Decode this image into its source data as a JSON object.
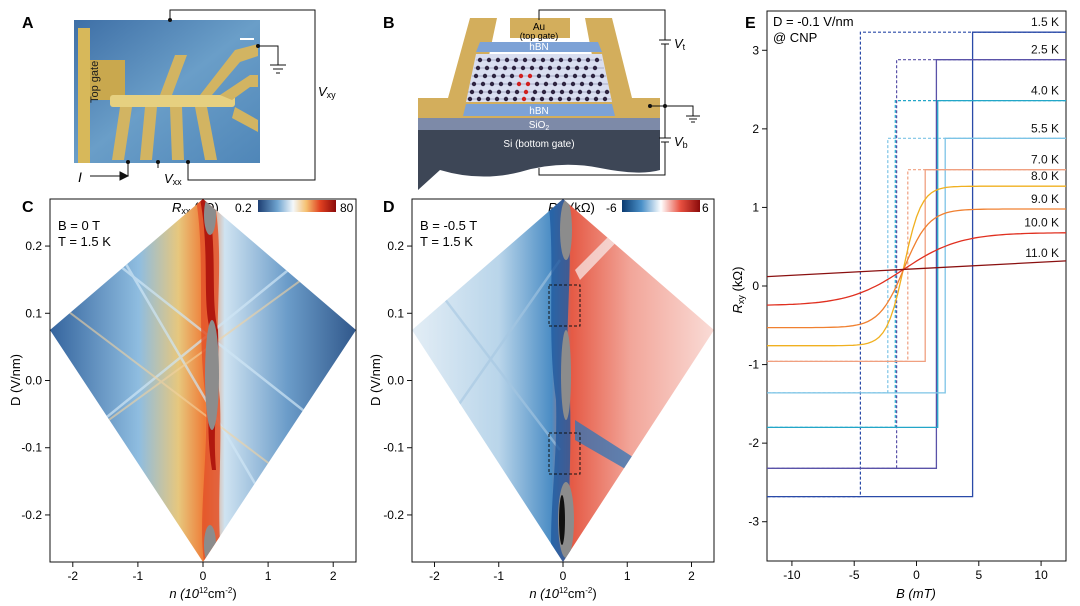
{
  "panels": {
    "A": {
      "label": "A",
      "top_gate": "Top gate",
      "current": "I",
      "vxx": "V",
      "vxx_sub": "xx",
      "vxy": "V",
      "vxy_sub": "xy"
    },
    "B": {
      "label": "B",
      "au": "Au",
      "au_sub": "(top gate)",
      "hbn_top": "hBN",
      "hbn_bottom": "hBN",
      "sio2": "SiO",
      "sio2_sub": "2",
      "si": "Si (bottom gate)",
      "vt": "V",
      "vt_sub": "t",
      "vb": "V",
      "vb_sub": "b"
    },
    "C": {
      "label": "C",
      "b_param": "B = 0 T",
      "t_param": "T = 1.5 K",
      "cbar_label": "R",
      "cbar_sub": "xx",
      "cbar_unit": " (kΩ)",
      "cbar_min": "0.2",
      "cbar_max": "80",
      "xlabel": "n (10",
      "xlabel_exp": "12",
      "xlabel_unit": "cm",
      "xlabel_exp2": "-2",
      "xlabel_close": ")",
      "ylabel": "D (V/nm)"
    },
    "D": {
      "label": "D",
      "b_param": "B = -0.5 T",
      "t_param": "T = 1.5 K",
      "cbar_label": "R",
      "cbar_sub": "xy",
      "cbar_unit": " (kΩ)",
      "cbar_min": "-6",
      "cbar_max": "6",
      "xlabel": "n (10",
      "xlabel_exp": "12",
      "xlabel_unit": "cm",
      "xlabel_exp2": "-2",
      "xlabel_close": ")",
      "ylabel": "D (V/nm)"
    },
    "E": {
      "label": "E",
      "annot1": "D = -0.1 V/nm",
      "annot2": "@ CNP",
      "xlabel": "B (mT)",
      "ylabel": "R",
      "ylabel_sub": "xy",
      "ylabel_unit": " (kΩ)"
    }
  },
  "chart_data": [
    {
      "panel": "C",
      "type": "heatmap",
      "title": "",
      "xlabel": "n (10^12 cm^-2)",
      "ylabel": "D (V/nm)",
      "xlim": [
        -2.35,
        2.35
      ],
      "ylim": [
        -0.27,
        0.27
      ],
      "x_ticks": [
        -2,
        -1,
        0,
        1,
        2
      ],
      "y_ticks": [
        0.2,
        0.1,
        0.0,
        -0.1,
        -0.2
      ],
      "x_tick_labels": [
        "-2",
        "-1",
        "0",
        "1",
        "2"
      ],
      "y_tick_labels": [
        "0.2",
        "0.1",
        "0.0",
        "-0.1",
        "-0.2"
      ],
      "colorbar": {
        "label": "Rxx (kΩ)",
        "min": 0.2,
        "max": 80,
        "colors": [
          "#1d3e72",
          "#6fa4d0",
          "#f4f8fb",
          "#f5c070",
          "#e04020",
          "#8a0a0a"
        ]
      },
      "features": [
        {
          "name": "charge neutrality ridge",
          "n": 0.15,
          "D_range": [
            -0.27,
            0.27
          ]
        }
      ]
    },
    {
      "panel": "D",
      "type": "heatmap",
      "title": "",
      "xlabel": "n (10^12 cm^-2)",
      "ylabel": "D (V/nm)",
      "xlim": [
        -2.35,
        2.35
      ],
      "ylim": [
        -0.27,
        0.27
      ],
      "x_ticks": [
        -2,
        -1,
        0,
        1,
        2
      ],
      "y_ticks": [
        0.2,
        0.1,
        0.0,
        -0.1,
        -0.2
      ],
      "x_tick_labels": [
        "-2",
        "-1",
        "0",
        "1",
        "2"
      ],
      "y_tick_labels": [
        "0.2",
        "0.1",
        "0.0",
        "-0.1",
        "-0.2"
      ],
      "colorbar": {
        "label": "Rxy (kΩ)",
        "min": -6,
        "max": 6,
        "colors": [
          "#0a3a70",
          "#4a90c8",
          "#ffffff",
          "#e85040",
          "#8a0a0a"
        ]
      },
      "highlight_boxes": [
        {
          "n_range": [
            -0.2,
            0.25
          ],
          "D_range": [
            0.09,
            0.16
          ]
        },
        {
          "n_range": [
            -0.2,
            0.25
          ],
          "D_range": [
            -0.13,
            -0.06
          ]
        }
      ]
    },
    {
      "panel": "E",
      "type": "line",
      "title": "",
      "xlabel": "B (mT)",
      "ylabel": "Rxy (kΩ)",
      "xlim": [
        -12,
        12
      ],
      "ylim": [
        -3.5,
        3.5
      ],
      "x_ticks": [
        -10,
        -5,
        0,
        5,
        10
      ],
      "y_ticks": [
        3,
        2,
        1,
        0,
        -1,
        -2,
        -3
      ],
      "x_tick_labels": [
        "-10",
        "-5",
        "0",
        "5",
        "10"
      ],
      "y_tick_labels": [
        "3",
        "2",
        "1",
        "0",
        "-1",
        "-2",
        "-3"
      ],
      "series": [
        {
          "name": "1.5 K",
          "color": "#2a4aa8",
          "type": "hysteresis",
          "high": 3.23,
          "low": -2.68,
          "bc": 4.5
        },
        {
          "name": "2.5 K",
          "color": "#5a52a8",
          "type": "hysteresis",
          "high": 2.88,
          "low": -2.32,
          "bc": 1.6
        },
        {
          "name": "4.0 K",
          "color": "#22a6c8",
          "type": "hysteresis",
          "high": 2.36,
          "low": -1.8,
          "bc": 1.7
        },
        {
          "name": "5.5 K",
          "color": "#7cc4e6",
          "type": "hysteresis",
          "high": 1.88,
          "low": -1.36,
          "bc": 2.3
        },
        {
          "name": "7.0 K",
          "color": "#f0a080",
          "type": "hysteresis",
          "high": 1.48,
          "low": -0.96,
          "bc": 0.7
        },
        {
          "name": "8.0 K",
          "color": "#f0b020",
          "type": "smooth",
          "high": 1.27,
          "low": -0.76,
          "width": 1.4
        },
        {
          "name": "9.0 K",
          "color": "#f08030",
          "type": "smooth",
          "high": 0.98,
          "low": -0.53,
          "width": 2.0
        },
        {
          "name": "10.0 K",
          "color": "#e03020",
          "type": "smooth",
          "high": 0.68,
          "low": -0.25,
          "width": 4.5
        },
        {
          "name": "11.0 K",
          "color": "#8a1010",
          "type": "linear",
          "y_at_xmin": 0.12,
          "y_at_xmax": 0.32
        }
      ]
    }
  ]
}
